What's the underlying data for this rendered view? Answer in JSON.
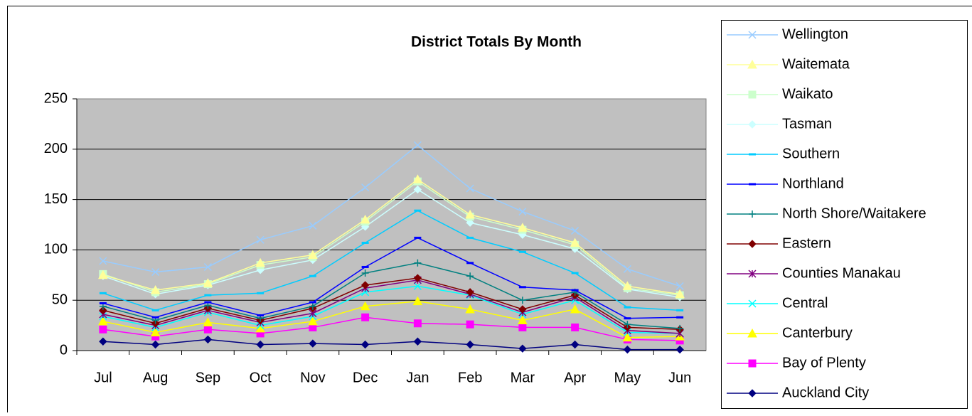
{
  "chart_data": {
    "type": "line",
    "title": "District Totals By Month",
    "categories": [
      "Jul",
      "Aug",
      "Sep",
      "Oct",
      "Nov",
      "Dec",
      "Jan",
      "Feb",
      "Mar",
      "Apr",
      "May",
      "Jun"
    ],
    "ylim": [
      0,
      250
    ],
    "yticks": [
      0,
      50,
      100,
      150,
      200,
      250
    ],
    "grid": true,
    "legend": "right",
    "series": [
      {
        "name": "Wellington",
        "color": "#99ccff",
        "marker": "x",
        "values": [
          89,
          78,
          83,
          110,
          124,
          162,
          204,
          161,
          138,
          119,
          81,
          64
        ]
      },
      {
        "name": "Waitemata",
        "color": "#ffff99",
        "marker": "triangle",
        "values": [
          75,
          60,
          67,
          87,
          95,
          130,
          170,
          135,
          122,
          107,
          64,
          56
        ]
      },
      {
        "name": "Waikato",
        "color": "#ccffcc",
        "marker": "square",
        "values": [
          76,
          58,
          66,
          85,
          93,
          128,
          168,
          133,
          120,
          105,
          62,
          55
        ]
      },
      {
        "name": "Tasman",
        "color": "#ccffff",
        "marker": "diamond",
        "values": [
          74,
          56,
          65,
          80,
          90,
          123,
          160,
          127,
          115,
          101,
          61,
          53
        ]
      },
      {
        "name": "Southern",
        "color": "#00ccff",
        "marker": "dash",
        "values": [
          57,
          40,
          55,
          57,
          74,
          107,
          139,
          112,
          98,
          77,
          43,
          40
        ]
      },
      {
        "name": "Northland",
        "color": "#0000ff",
        "marker": "dash",
        "values": [
          47,
          33,
          48,
          35,
          48,
          83,
          112,
          87,
          63,
          60,
          32,
          33
        ]
      },
      {
        "name": "North Shore/Waitakere",
        "color": "#008080",
        "marker": "plus",
        "values": [
          44,
          30,
          45,
          32,
          44,
          77,
          87,
          74,
          50,
          58,
          26,
          22
        ]
      },
      {
        "name": "Eastern",
        "color": "#800000",
        "marker": "diamond",
        "values": [
          40,
          27,
          42,
          30,
          42,
          65,
          72,
          58,
          41,
          55,
          23,
          21
        ]
      },
      {
        "name": "Counties Manakau",
        "color": "#800080",
        "marker": "star",
        "values": [
          36,
          25,
          40,
          28,
          37,
          62,
          70,
          56,
          38,
          53,
          20,
          17
        ]
      },
      {
        "name": "Central",
        "color": "#00ffff",
        "marker": "x",
        "values": [
          34,
          23,
          38,
          25,
          34,
          58,
          64,
          55,
          36,
          50,
          18,
          17
        ]
      },
      {
        "name": "Canterbury",
        "color": "#ffff00",
        "marker": "triangle",
        "values": [
          29,
          18,
          28,
          22,
          29,
          44,
          49,
          41,
          30,
          41,
          13,
          14
        ]
      },
      {
        "name": "Bay of Plenty",
        "color": "#ff00ff",
        "marker": "square",
        "values": [
          21,
          14,
          21,
          17,
          23,
          33,
          27,
          26,
          23,
          23,
          11,
          10
        ]
      },
      {
        "name": "Auckland City",
        "color": "#000080",
        "marker": "diamond",
        "values": [
          9,
          6,
          11,
          6,
          7,
          6,
          9,
          6,
          2,
          6,
          1,
          1
        ]
      }
    ]
  }
}
